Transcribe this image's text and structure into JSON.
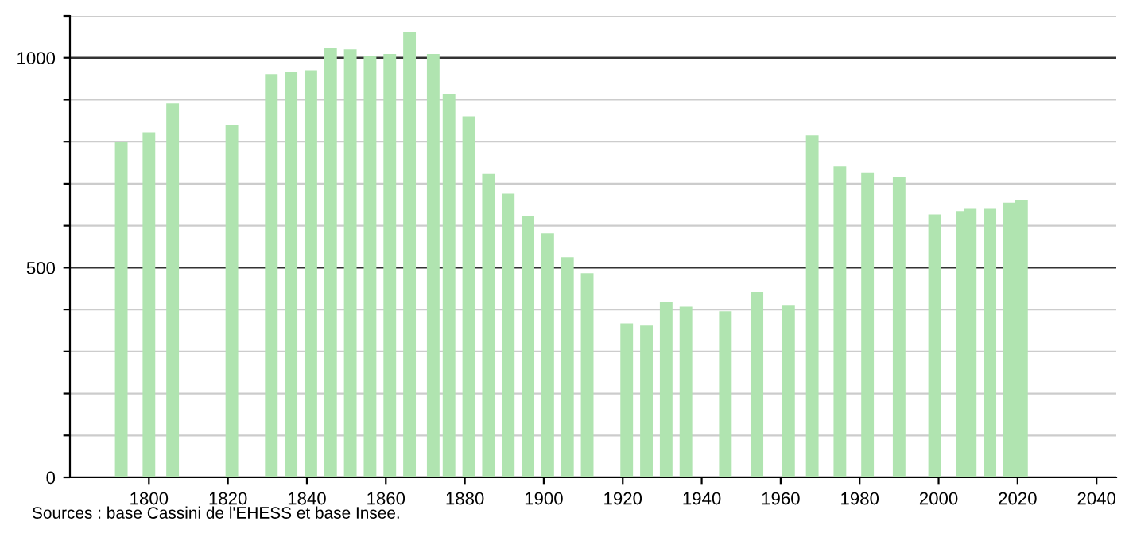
{
  "chart_data": {
    "type": "bar",
    "color": "#b0e4b0",
    "x": [
      1793,
      1800,
      1806,
      1821,
      1831,
      1836,
      1841,
      1846,
      1851,
      1856,
      1861,
      1866,
      1872,
      1876,
      1881,
      1886,
      1891,
      1896,
      1901,
      1906,
      1911,
      1921,
      1926,
      1931,
      1936,
      1946,
      1954,
      1962,
      1968,
      1975,
      1982,
      1990,
      1999,
      2006,
      2008,
      2013,
      2018,
      2021
    ],
    "values": [
      800,
      822,
      891,
      840,
      961,
      966,
      970,
      1024,
      1020,
      1005,
      1009,
      1062,
      1009,
      914,
      860,
      723,
      676,
      624,
      582,
      525,
      487,
      367,
      362,
      418,
      407,
      396,
      442,
      411,
      815,
      741,
      727,
      716,
      627,
      635,
      640,
      640,
      655,
      660
    ],
    "xlim": [
      1780,
      2045
    ],
    "xticks": [
      1800,
      1820,
      1840,
      1860,
      1880,
      1900,
      1920,
      1940,
      1960,
      1980,
      2000,
      2020,
      2040
    ],
    "ylim": [
      0,
      1100
    ],
    "yticks": [
      0,
      {
        "value": 100,
        "label": null
      },
      {
        "value": 200,
        "label": null
      },
      {
        "value": 300,
        "label": null
      },
      {
        "value": 400,
        "label": null
      },
      500,
      {
        "value": 600,
        "label": null
      },
      {
        "value": 700,
        "label": null
      },
      {
        "value": 800,
        "label": null
      },
      {
        "value": 900,
        "label": null
      },
      1000,
      {
        "value": 1100,
        "label": null
      }
    ],
    "grid": "y",
    "annotations": [
      "Sources : base Cassini de l'EHESS et base Insee."
    ]
  }
}
